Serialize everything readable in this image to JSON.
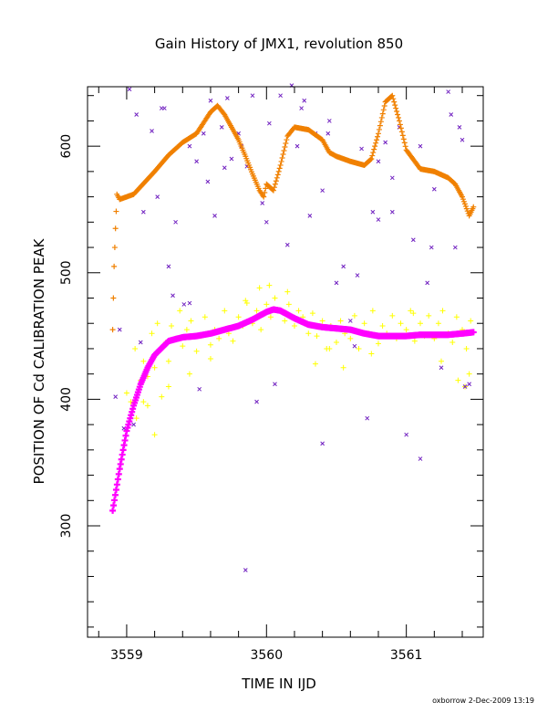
{
  "chart_data": {
    "type": "scatter",
    "title": "Gain History of JMX1, revolution 850",
    "xlabel": "TIME IN IJD",
    "ylabel": "POSITION OF Cd CALIBRATION PEAK",
    "footer": "oxborrow  2-Dec-2009 13:19",
    "xlim": [
      3558.72,
      3561.55
    ],
    "ylim": [
      212,
      647
    ],
    "x_ticks": [
      3559,
      3560,
      3561
    ],
    "x_tick_labels": [
      "3559",
      "3560",
      "3561"
    ],
    "y_ticks": [
      300,
      400,
      500,
      600
    ],
    "y_tick_labels": [
      "300",
      "400",
      "500",
      "600"
    ],
    "colors": {
      "high_smooth": "#f08000",
      "high_raw": "#7020c0",
      "low_smooth": "#ff00ff",
      "low_raw": "#ffff00"
    },
    "series": [
      {
        "key": "high_smooth",
        "marker": "plus",
        "x": [
          3558.9,
          3558.91,
          3558.92,
          3558.93,
          3558.95,
          3559.0,
          3559.05,
          3559.1,
          3559.2,
          3559.3,
          3559.4,
          3559.5,
          3559.6,
          3559.65,
          3559.7,
          3559.75,
          3559.8,
          3559.85,
          3559.9,
          3559.95,
          3559.98,
          3560.0,
          3560.05,
          3560.1,
          3560.15,
          3560.2,
          3560.3,
          3560.4,
          3560.45,
          3560.5,
          3560.6,
          3560.7,
          3560.75,
          3560.8,
          3560.85,
          3560.9,
          3560.95,
          3561.0,
          3561.1,
          3561.2,
          3561.3,
          3561.35,
          3561.4,
          3561.45,
          3561.48
        ],
        "y": [
          455,
          505,
          535,
          562,
          558,
          560,
          562,
          568,
          580,
          593,
          603,
          610,
          627,
          632,
          625,
          615,
          605,
          592,
          578,
          565,
          560,
          570,
          565,
          585,
          608,
          615,
          613,
          605,
          595,
          592,
          588,
          585,
          590,
          610,
          635,
          640,
          620,
          597,
          582,
          580,
          575,
          570,
          560,
          545,
          552
        ]
      },
      {
        "key": "low_smooth",
        "marker": "plus",
        "x": [
          3558.9,
          3558.95,
          3559.0,
          3559.05,
          3559.1,
          3559.15,
          3559.2,
          3559.3,
          3559.4,
          3559.5,
          3559.6,
          3559.7,
          3559.8,
          3559.9,
          3560.0,
          3560.05,
          3560.1,
          3560.2,
          3560.3,
          3560.4,
          3560.5,
          3560.6,
          3560.7,
          3560.8,
          3560.9,
          3561.0,
          3561.1,
          3561.2,
          3561.3,
          3561.4,
          3561.48
        ],
        "y": [
          312,
          345,
          375,
          395,
          412,
          425,
          435,
          446,
          449,
          450,
          452,
          455,
          458,
          463,
          469,
          471,
          470,
          464,
          459,
          457,
          456,
          455,
          452,
          450,
          450,
          450,
          451,
          451,
          451,
          452,
          453
        ]
      },
      {
        "key": "high_raw",
        "marker": "cross",
        "x": [
          3558.92,
          3558.95,
          3558.98,
          3559.02,
          3559.07,
          3559.12,
          3559.18,
          3559.22,
          3559.27,
          3559.3,
          3559.35,
          3559.41,
          3559.45,
          3559.5,
          3559.52,
          3559.58,
          3559.6,
          3559.63,
          3559.68,
          3559.72,
          3559.75,
          3559.8,
          3559.82,
          3559.86,
          3559.9,
          3559.93,
          3559.97,
          3560.0,
          3560.02,
          3560.06,
          3560.1,
          3560.15,
          3560.18,
          3560.22,
          3560.27,
          3560.31,
          3560.35,
          3560.4,
          3560.44,
          3560.5,
          3560.55,
          3560.6,
          3560.63,
          3560.68,
          3560.72,
          3560.76,
          3560.8,
          3560.85,
          3560.9,
          3560.95,
          3561.0,
          3561.05,
          3561.1,
          3561.15,
          3561.2,
          3561.25,
          3561.3,
          3561.35,
          3561.38,
          3561.42,
          3561.45,
          3561.1,
          3560.4,
          3559.85,
          3559.45,
          3559.05,
          3559.33,
          3560.45,
          3560.8,
          3561.32,
          3561.18,
          3559.1,
          3559.25,
          3559.55,
          3559.7,
          3560.25,
          3560.65,
          3560.9,
          3561.4
        ],
        "y": [
          402,
          455,
          377,
          645,
          625,
          548,
          612,
          560,
          630,
          505,
          540,
          475,
          600,
          588,
          408,
          572,
          636,
          545,
          615,
          638,
          590,
          610,
          600,
          584,
          640,
          398,
          555,
          540,
          618,
          412,
          640,
          522,
          648,
          600,
          636,
          545,
          610,
          565,
          610,
          492,
          505,
          462,
          442,
          598,
          385,
          548,
          588,
          603,
          548,
          615,
          372,
          526,
          600,
          492,
          566,
          425,
          643,
          520,
          615,
          410,
          412,
          353,
          365,
          265,
          476,
          380,
          482,
          620,
          542,
          625,
          520,
          445,
          630,
          610,
          583,
          630,
          498,
          575,
          605
        ]
      },
      {
        "key": "low_raw",
        "marker": "plus",
        "x": [
          3559.0,
          3559.03,
          3559.06,
          3559.1,
          3559.12,
          3559.15,
          3559.18,
          3559.2,
          3559.22,
          3559.25,
          3559.28,
          3559.3,
          3559.32,
          3559.35,
          3559.38,
          3559.4,
          3559.43,
          3559.46,
          3559.5,
          3559.53,
          3559.56,
          3559.6,
          3559.63,
          3559.66,
          3559.7,
          3559.73,
          3559.76,
          3559.8,
          3559.83,
          3559.86,
          3559.9,
          3559.93,
          3559.96,
          3560.0,
          3560.03,
          3560.06,
          3560.1,
          3560.13,
          3560.16,
          3560.2,
          3560.23,
          3560.26,
          3560.3,
          3560.33,
          3560.36,
          3560.4,
          3560.43,
          3560.46,
          3560.5,
          3560.53,
          3560.56,
          3560.6,
          3560.63,
          3560.66,
          3560.7,
          3560.73,
          3560.76,
          3560.8,
          3560.83,
          3560.86,
          3560.9,
          3560.93,
          3560.96,
          3561.0,
          3561.03,
          3561.06,
          3561.1,
          3561.13,
          3561.16,
          3561.2,
          3561.23,
          3561.26,
          3561.3,
          3561.33,
          3561.36,
          3561.4,
          3561.43,
          3561.46,
          3559.12,
          3559.2,
          3559.25,
          3559.45,
          3559.95,
          3560.02,
          3560.35,
          3560.55,
          3561.37,
          3561.45,
          3559.07,
          3559.15,
          3559.3,
          3559.6,
          3559.85,
          3560.15,
          3560.45,
          3560.75,
          3561.05,
          3561.25,
          3561.42
        ],
        "y": [
          405,
          398,
          440,
          415,
          430,
          418,
          452,
          425,
          460,
          440,
          445,
          430,
          458,
          448,
          470,
          442,
          455,
          462,
          438,
          450,
          465,
          443,
          455,
          448,
          470,
          452,
          446,
          465,
          458,
          476,
          460,
          470,
          455,
          475,
          465,
          480,
          470,
          462,
          475,
          458,
          470,
          465,
          452,
          468,
          450,
          462,
          440,
          458,
          445,
          462,
          452,
          448,
          466,
          440,
          460,
          452,
          470,
          444,
          458,
          452,
          466,
          448,
          460,
          455,
          470,
          446,
          460,
          450,
          466,
          448,
          460,
          470,
          452,
          445,
          465,
          455,
          440,
          462,
          398,
          372,
          402,
          420,
          488,
          490,
          428,
          425,
          415,
          420,
          385,
          395,
          410,
          432,
          478,
          485,
          440,
          436,
          468,
          430,
          410
        ]
      }
    ]
  }
}
